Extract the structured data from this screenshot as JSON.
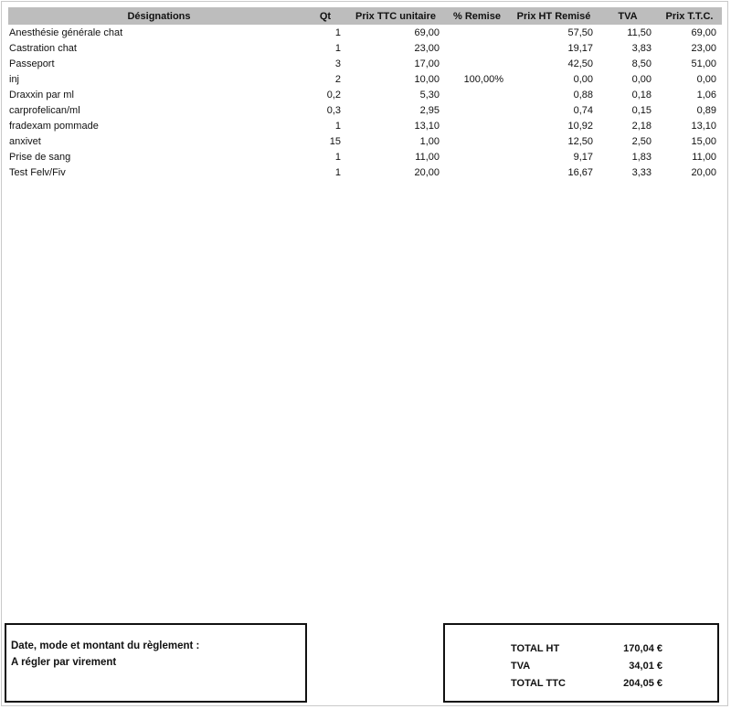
{
  "table": {
    "headers": [
      "Désignations",
      "Qt",
      "Prix TTC unitaire",
      "% Remise",
      "Prix HT Remisé",
      "TVA",
      "Prix T.T.C."
    ],
    "rows": [
      {
        "designation": "Anesthésie générale chat",
        "qt": "1",
        "unit": "69,00",
        "remise": "",
        "ht": "57,50",
        "tva": "11,50",
        "ttc": "69,00"
      },
      {
        "designation": "Castration chat",
        "qt": "1",
        "unit": "23,00",
        "remise": "",
        "ht": "19,17",
        "tva": "3,83",
        "ttc": "23,00"
      },
      {
        "designation": "Passeport",
        "qt": "3",
        "unit": "17,00",
        "remise": "",
        "ht": "42,50",
        "tva": "8,50",
        "ttc": "51,00"
      },
      {
        "designation": "inj",
        "qt": "2",
        "unit": "10,00",
        "remise": "100,00%",
        "ht": "0,00",
        "tva": "0,00",
        "ttc": "0,00"
      },
      {
        "designation": "Draxxin par ml",
        "qt": "0,2",
        "unit": "5,30",
        "remise": "",
        "ht": "0,88",
        "tva": "0,18",
        "ttc": "1,06"
      },
      {
        "designation": "carprofelican/ml",
        "qt": "0,3",
        "unit": "2,95",
        "remise": "",
        "ht": "0,74",
        "tva": "0,15",
        "ttc": "0,89"
      },
      {
        "designation": "fradexam pommade",
        "qt": "1",
        "unit": "13,10",
        "remise": "",
        "ht": "10,92",
        "tva": "2,18",
        "ttc": "13,10"
      },
      {
        "designation": "anxivet",
        "qt": "15",
        "unit": "1,00",
        "remise": "",
        "ht": "12,50",
        "tva": "2,50",
        "ttc": "15,00"
      },
      {
        "designation": "Prise de sang",
        "qt": "1",
        "unit": "11,00",
        "remise": "",
        "ht": "9,17",
        "tva": "1,83",
        "ttc": "11,00"
      },
      {
        "designation": "Test Felv/Fiv",
        "qt": "1",
        "unit": "20,00",
        "remise": "",
        "ht": "16,67",
        "tva": "3,33",
        "ttc": "20,00"
      }
    ]
  },
  "payment_box": {
    "title": "Date, mode et montant du règlement :",
    "line": "A régler par virement"
  },
  "totals_box": {
    "rows": [
      {
        "label": "TOTAL HT",
        "value": "170,04 €"
      },
      {
        "label": "TVA",
        "value": "34,01 €"
      },
      {
        "label": "TOTAL TTC",
        "value": "204,05 €"
      }
    ]
  }
}
